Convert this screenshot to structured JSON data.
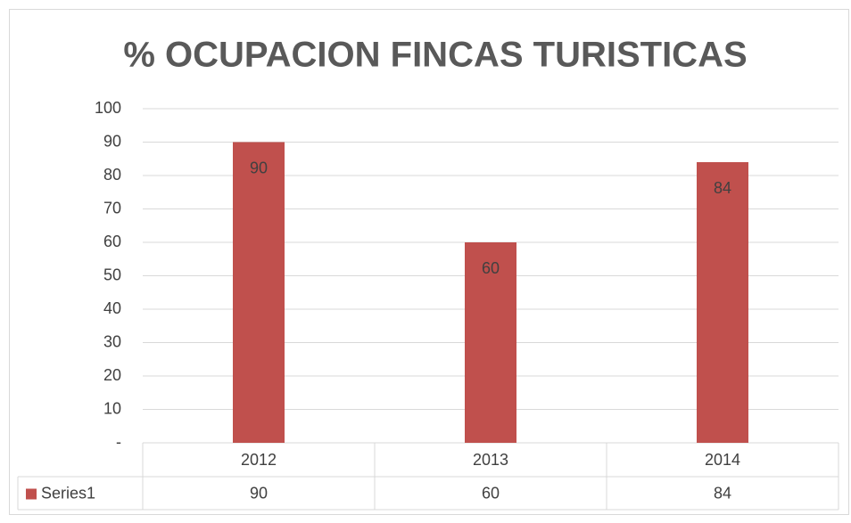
{
  "chart_data": {
    "type": "bar",
    "title": "% OCUPACION FINCAS TURISTICAS",
    "categories": [
      "2012",
      "2013",
      "2014"
    ],
    "series": [
      {
        "name": "Series1",
        "color": "#c0504d",
        "values": [
          90,
          60,
          84
        ]
      }
    ],
    "ylim": [
      0,
      100
    ],
    "yticks": [
      {
        "value": 0,
        "label": "-"
      },
      10,
      20,
      30,
      40,
      50,
      60,
      70,
      80,
      90,
      100
    ],
    "grid": true
  }
}
